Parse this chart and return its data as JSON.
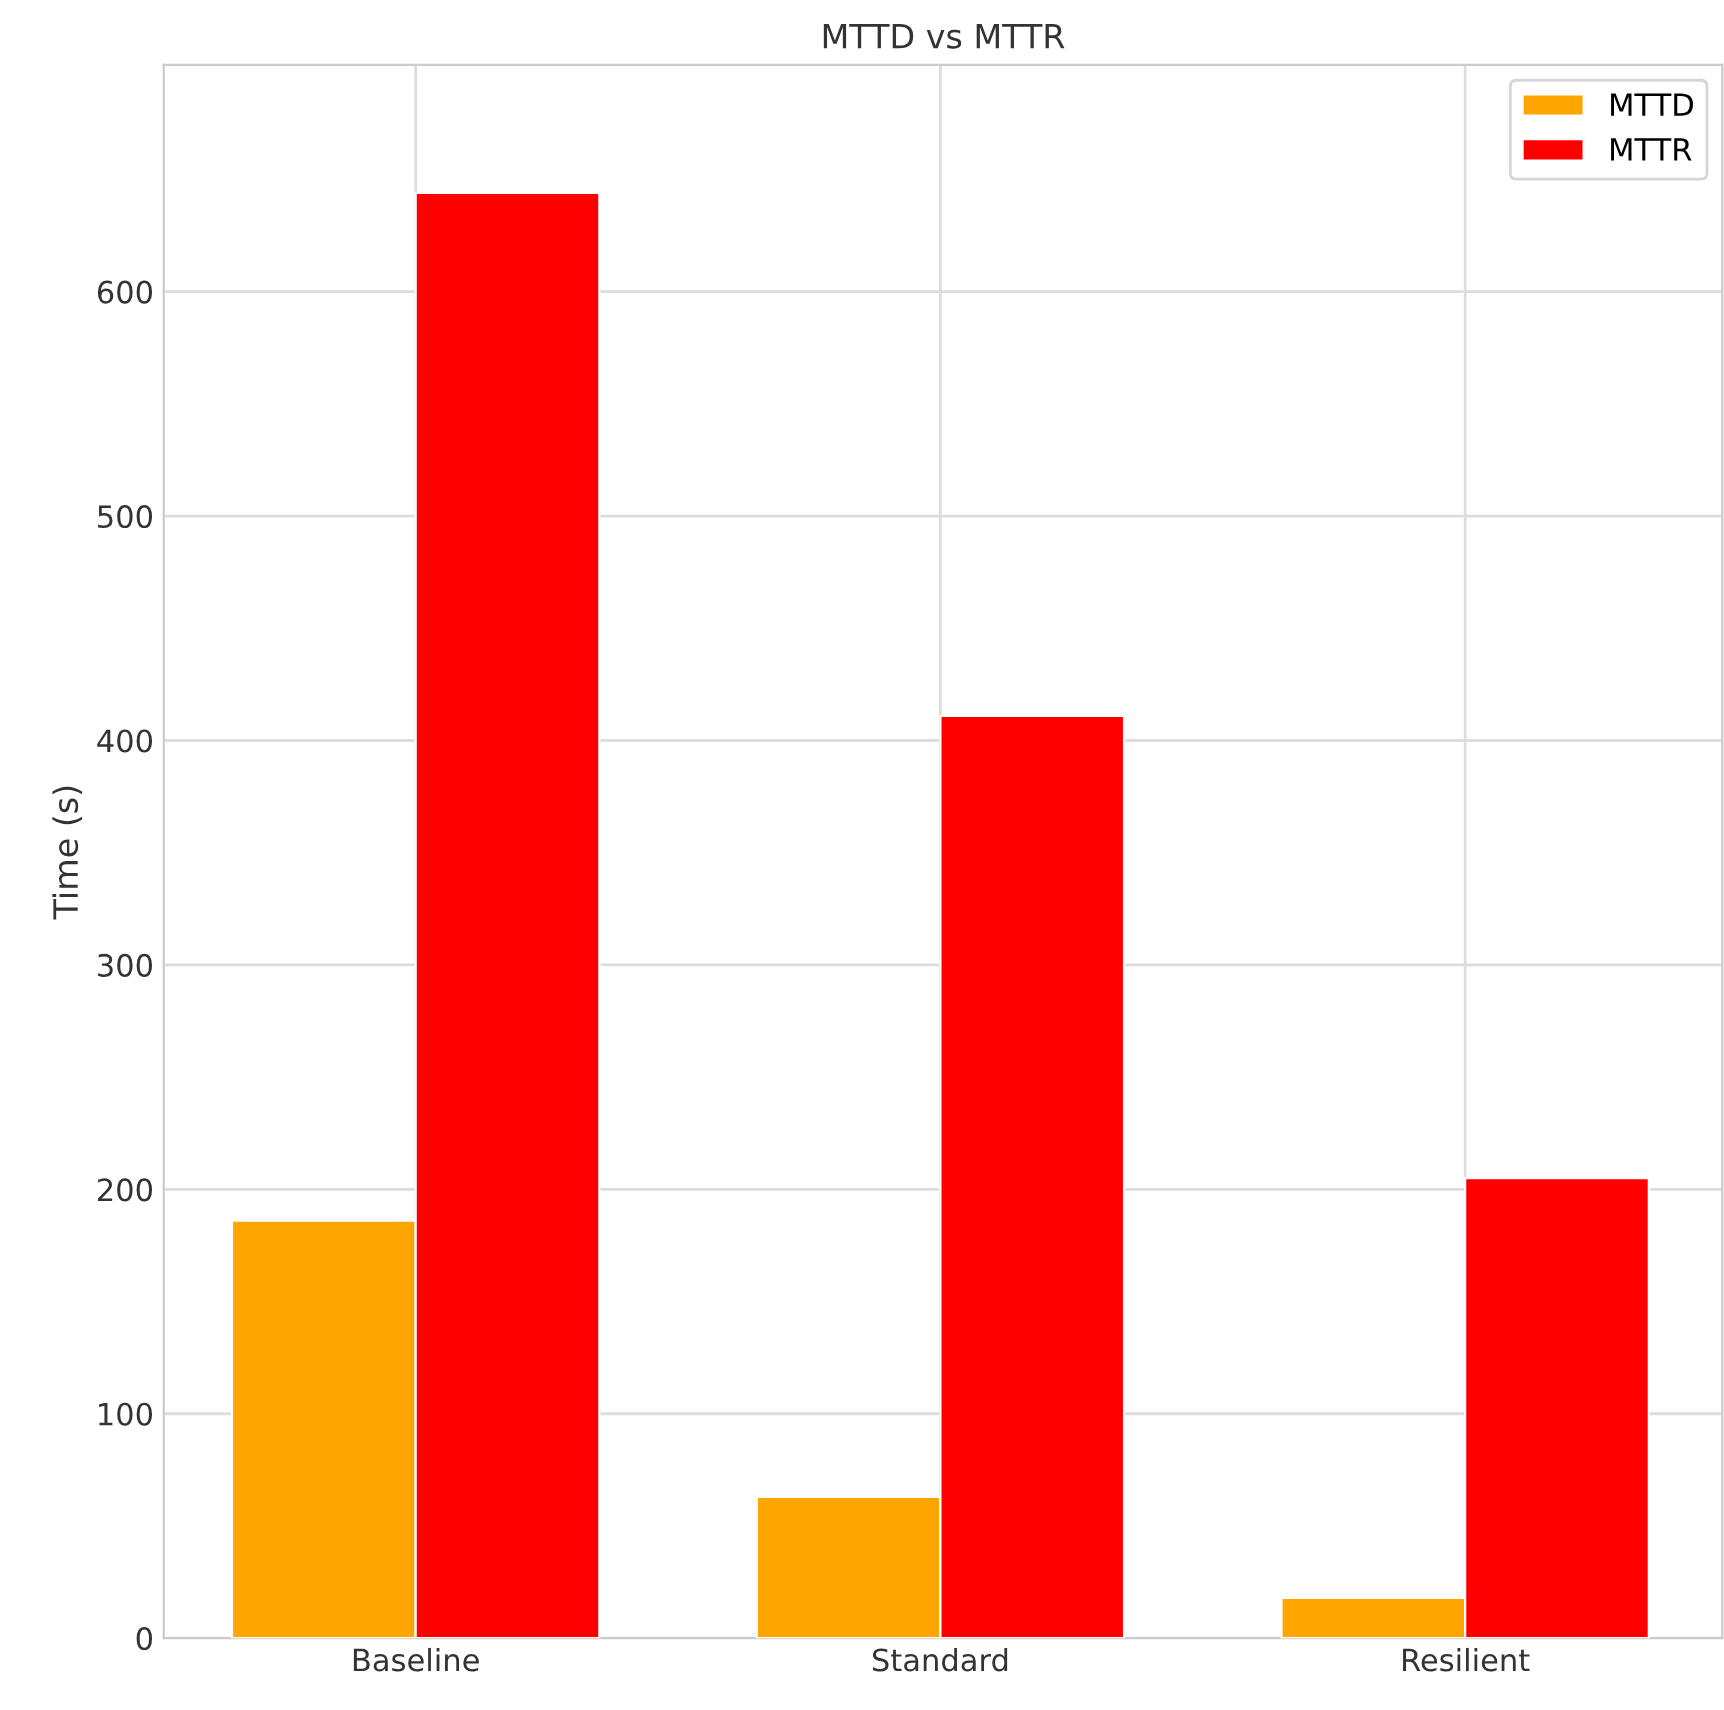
{
  "chart_data": {
    "type": "bar",
    "title": "MTTD vs MTTR",
    "ylabel": "Time (s)",
    "categories": [
      "Baseline",
      "Standard",
      "Resilient"
    ],
    "series": [
      {
        "name": "MTTD",
        "color": "#ffa500",
        "values": [
          186,
          63,
          18
        ]
      },
      {
        "name": "MTTR",
        "color": "#ff0000",
        "values": [
          644,
          411,
          205
        ]
      }
    ],
    "ylim": [
      0,
      701
    ],
    "yticks": [
      0,
      100,
      200,
      300,
      400,
      500,
      600
    ],
    "grid": true,
    "legend": "top right"
  }
}
